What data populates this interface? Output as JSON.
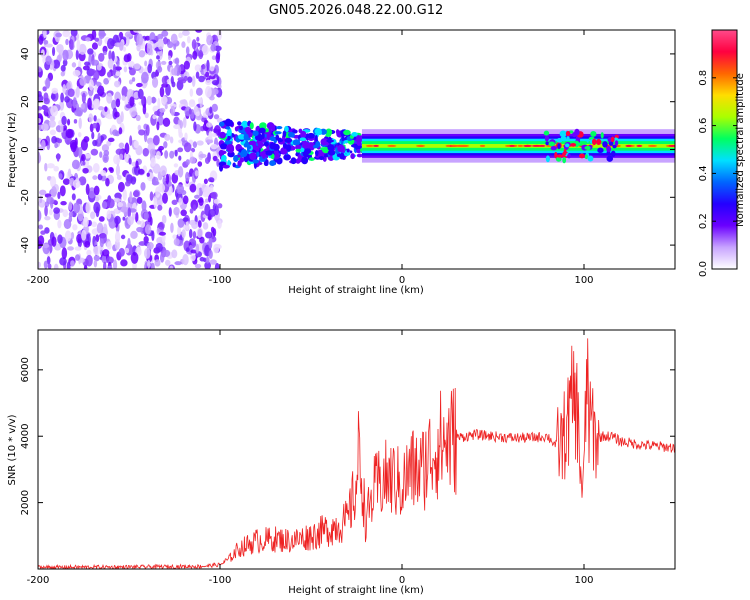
{
  "title": "GN05.2026.048.22.00.G12",
  "colors": {
    "line": "#ee2222",
    "spectrum": [
      "#ffffff",
      "#ecdcff",
      "#c8a4ff",
      "#8c42ff",
      "#6a00ff",
      "#2400ff",
      "#0066ff",
      "#00e0ff",
      "#00ff60",
      "#aaff00",
      "#ff6600",
      "#ff0040",
      "#ff4a8a"
    ]
  },
  "chart_data": [
    {
      "type": "heatmap",
      "title": "",
      "xlabel": "Height of straight line (km)",
      "ylabel": "Frequency (Hz)",
      "xlim": [
        -200,
        150
      ],
      "ylim": [
        -50,
        50
      ],
      "xticks": [
        "-200",
        "-100",
        "0",
        "100"
      ],
      "yticks": [
        "40",
        "20",
        "0",
        "-20",
        "-40"
      ],
      "colorbar": {
        "label": "Normalized spectral amplitude",
        "range": [
          0,
          1
        ],
        "ticks": [
          "0.0",
          "0.2",
          "0.4",
          "0.6",
          "0.8"
        ]
      }
    },
    {
      "type": "line",
      "title": "",
      "xlabel": "Height of straight line (km)",
      "ylabel": "SNR (10 * v/v)",
      "xlim": [
        -200,
        150
      ],
      "ylim": [
        0,
        7200
      ],
      "xticks": [
        "-200",
        "-100",
        "0",
        "100"
      ],
      "yticks": [
        "2000",
        "4000",
        "6000"
      ],
      "series": [
        {
          "name": "SNR",
          "x": [
            -200,
            -150,
            -110,
            -100,
            -95,
            -90,
            -80,
            -70,
            -60,
            -50,
            -40,
            -30,
            -25,
            -24,
            -22,
            -20,
            -15,
            -10,
            -5,
            0,
            5,
            10,
            15,
            20,
            25,
            30,
            35,
            40,
            50,
            60,
            70,
            80,
            85,
            88,
            90,
            92,
            94,
            96,
            98,
            99,
            100,
            101,
            102,
            103,
            104,
            106,
            110,
            115,
            120,
            130,
            140,
            150
          ],
          "y": [
            50,
            60,
            80,
            130,
            300,
            600,
            850,
            900,
            850,
            1000,
            1200,
            1450,
            2500,
            3400,
            2800,
            1400,
            2400,
            2700,
            2700,
            2500,
            3000,
            2900,
            3400,
            3750,
            3850,
            3950,
            4000,
            4050,
            4000,
            3950,
            3950,
            4000,
            3700,
            3800,
            4200,
            4600,
            5200,
            4900,
            3200,
            2300,
            2800,
            4800,
            6200,
            3800,
            4700,
            3900,
            4000,
            4000,
            3850,
            3750,
            3700,
            3650
          ]
        }
      ]
    }
  ]
}
